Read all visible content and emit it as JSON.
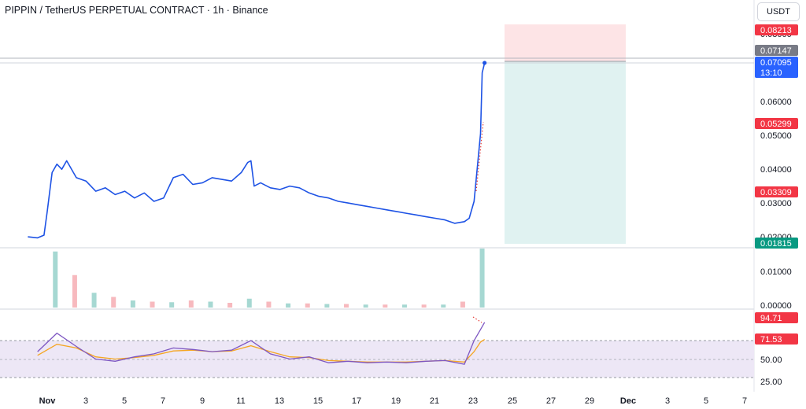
{
  "header": {
    "title": "PIPPIN / TetherUS PERPETUAL CONTRACT · 1h · Binance",
    "currency": "USDT"
  },
  "price_badges": [
    {
      "label": "0.08213",
      "color": "#f23645"
    },
    {
      "label": "0.07147",
      "color": "#787b86"
    },
    {
      "label": "0.07095",
      "sub": "13:10",
      "color": "#2962ff"
    },
    {
      "label": "0.05299",
      "color": "#f23645"
    },
    {
      "label": "0.03309",
      "color": "#f23645"
    },
    {
      "label": "0.01815",
      "color": "#089981"
    }
  ],
  "rsi_badges": [
    {
      "label": "94.71",
      "color": "#f23645"
    },
    {
      "label": "71.53",
      "color": "#f23645"
    }
  ],
  "colors": {
    "price_line": "#1e53e5",
    "rsi_line": "#7e57c2",
    "rsi_ma": "#f5a623",
    "rsi_band": "#ede7f6",
    "stop_zone": "#fde4e6",
    "target_zone": "#e0f2f1",
    "volume_up": "#a6d8d2",
    "volume_down": "#f7b9be",
    "trend_dots": "#e53935"
  },
  "chart_data": [
    {
      "type": "line",
      "title": "PIPPIN / TetherUS PERPETUAL CONTRACT · 1h · Binance",
      "x_ticks": [
        "Nov",
        "3",
        "5",
        "7",
        "9",
        "11",
        "13",
        "15",
        "17",
        "19",
        "21",
        "23",
        "25",
        "27",
        "29",
        "Dec",
        "3",
        "5",
        "7"
      ],
      "y_ticks": [
        "0.08000",
        "0.06000",
        "0.05000",
        "0.04000",
        "0.03000",
        "0.02000",
        "0.01000",
        "0.00000"
      ],
      "series": [
        {
          "x": [
            "Oct 31 00:00",
            "Oct 31 12:00",
            "Oct 31 20:00",
            "Nov 1 00:00",
            "Nov 1 06:00",
            "Nov 1 12:00",
            "Nov 1 18:00",
            "Nov 2 00:00",
            "Nov 2 12:00",
            "Nov 3 00:00",
            "Nov 3 12:00",
            "Nov 4 00:00",
            "Nov 4 12:00",
            "Nov 5 00:00",
            "Nov 5 12:00",
            "Nov 6 00:00",
            "Nov 6 12:00",
            "Nov 7 00:00",
            "Nov 7 12:00",
            "Nov 8 00:00",
            "Nov 8 12:00",
            "Nov 9 00:00",
            "Nov 9 12:00",
            "Nov 10 00:00",
            "Nov 10 12:00",
            "Nov 11 00:00",
            "Nov 11 08:00",
            "Nov 11 12:00",
            "Nov 11 16:00",
            "Nov 12 00:00",
            "Nov 12 12:00",
            "Nov 13 00:00",
            "Nov 13 12:00",
            "Nov 14 00:00",
            "Nov 14 12:00",
            "Nov 15 00:00",
            "Nov 15 12:00",
            "Nov 16 00:00",
            "Nov 16 12:00",
            "Nov 17 00:00",
            "Nov 17 12:00",
            "Nov 18 00:00",
            "Nov 18 12:00",
            "Nov 19 00:00",
            "Nov 19 12:00",
            "Nov 20 00:00",
            "Nov 20 12:00",
            "Nov 21 00:00",
            "Nov 21 12:00",
            "Nov 22 00:00",
            "Nov 22 12:00",
            "Nov 22 18:00",
            "Nov 23 00:00",
            "Nov 23 04:00",
            "Nov 23 08:00",
            "Nov 23 10:00",
            "Nov 23 13:00"
          ],
          "values": [
            0.0195,
            0.0192,
            0.02,
            0.027,
            0.0385,
            0.041,
            0.0395,
            0.042,
            0.037,
            0.036,
            0.033,
            0.034,
            0.032,
            0.033,
            0.031,
            0.0325,
            0.03,
            0.031,
            0.037,
            0.038,
            0.035,
            0.0355,
            0.037,
            0.0365,
            0.036,
            0.0385,
            0.0415,
            0.042,
            0.0345,
            0.0355,
            0.034,
            0.0335,
            0.0345,
            0.034,
            0.0325,
            0.0315,
            0.031,
            0.03,
            0.0295,
            0.029,
            0.0285,
            0.028,
            0.0275,
            0.027,
            0.0265,
            0.026,
            0.0255,
            0.025,
            0.0245,
            0.0235,
            0.024,
            0.025,
            0.03,
            0.04,
            0.05,
            0.068,
            0.07095
          ]
        }
      ]
    },
    {
      "type": "bar",
      "categories": [
        "Nov 1",
        "Nov 2",
        "Nov 3",
        "Nov 4",
        "Nov 5",
        "Nov 6",
        "Nov 7",
        "Nov 8",
        "Nov 9",
        "Nov 10",
        "Nov 11",
        "Nov 12",
        "Nov 13",
        "Nov 14",
        "Nov 15",
        "Nov 16",
        "Nov 17",
        "Nov 18",
        "Nov 19",
        "Nov 20",
        "Nov 21",
        "Nov 22",
        "Nov 23"
      ],
      "values": [
        0.95,
        0.55,
        0.25,
        0.18,
        0.12,
        0.1,
        0.09,
        0.12,
        0.1,
        0.08,
        0.15,
        0.1,
        0.07,
        0.07,
        0.06,
        0.06,
        0.05,
        0.05,
        0.05,
        0.05,
        0.05,
        0.1,
        1.0
      ]
    },
    {
      "type": "line",
      "y_ticks": [
        "50.00",
        "25.00"
      ],
      "series": [
        {
          "x": [
            "Oct 31",
            "Nov 1",
            "Nov 2",
            "Nov 3",
            "Nov 4",
            "Nov 5",
            "Nov 6",
            "Nov 7",
            "Nov 8",
            "Nov 9",
            "Nov 10",
            "Nov 11",
            "Nov 12",
            "Nov 13",
            "Nov 14",
            "Nov 15",
            "Nov 16",
            "Nov 17",
            "Nov 18",
            "Nov 19",
            "Nov 20",
            "Nov 21",
            "Nov 22",
            "Nov 23 00:00",
            "Nov 23 08:00",
            "Nov 23 13:00"
          ],
          "values": [
            55,
            80,
            62,
            45,
            42,
            48,
            52,
            60,
            58,
            55,
            57,
            70,
            52,
            45,
            48,
            40,
            42,
            40,
            41,
            40,
            42,
            43,
            38,
            70,
            85,
            94.71
          ]
        },
        {
          "x": [
            "Oct 31",
            "Nov 1",
            "Nov 2",
            "Nov 3",
            "Nov 4",
            "Nov 5",
            "Nov 6",
            "Nov 7",
            "Nov 8",
            "Nov 9",
            "Nov 10",
            "Nov 11",
            "Nov 12",
            "Nov 13",
            "Nov 14",
            "Nov 15",
            "Nov 16",
            "Nov 17",
            "Nov 18",
            "Nov 19",
            "Nov 20",
            "Nov 21",
            "Nov 22",
            "Nov 23 00:00",
            "Nov 23 08:00",
            "Nov 23 13:00"
          ],
          "values": [
            50,
            65,
            60,
            48,
            45,
            47,
            50,
            56,
            57,
            55,
            56,
            63,
            55,
            48,
            47,
            43,
            42,
            41,
            41,
            41,
            42,
            43,
            41,
            55,
            68,
            71.53
          ]
        }
      ]
    }
  ]
}
